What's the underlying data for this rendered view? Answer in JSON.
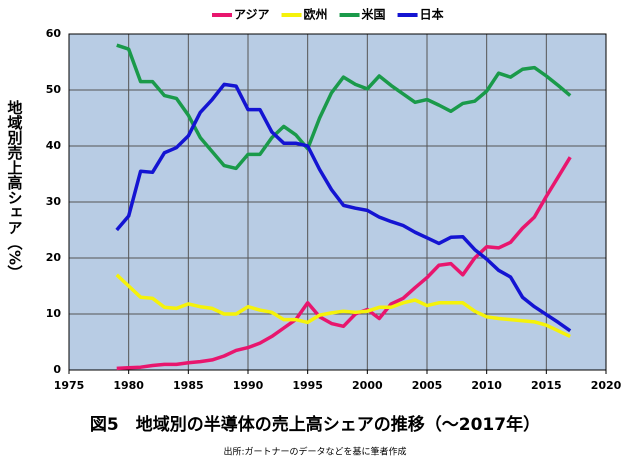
{
  "chart_data": {
    "type": "line",
    "title": "図5　地域別の半導体の売上高シェアの推移（～2017年）",
    "source": "出所:ガートナーのデータなどを基に筆者作成",
    "y_label": "地域別売上高シェア（%）",
    "x": [
      1979,
      1980,
      1981,
      1982,
      1983,
      1984,
      1985,
      1986,
      1987,
      1988,
      1989,
      1990,
      1991,
      1992,
      1993,
      1994,
      1995,
      1996,
      1997,
      1998,
      1999,
      2000,
      2001,
      2002,
      2003,
      2004,
      2005,
      2006,
      2007,
      2008,
      2009,
      2010,
      2011,
      2012,
      2013,
      2014,
      2015,
      2016,
      2017
    ],
    "series": [
      {
        "name": "アジア",
        "color": "#e8166e",
        "values": [
          0.3,
          0.4,
          0.5,
          0.8,
          1,
          1,
          1.3,
          1.5,
          1.8,
          2.5,
          3.5,
          4,
          4.8,
          6,
          7.5,
          9,
          12,
          9.5,
          8.3,
          7.8,
          10,
          10.8,
          9.2,
          11.8,
          12.8,
          14.7,
          16.5,
          18.7,
          19,
          17,
          20,
          22,
          21.8,
          22.8,
          25.3,
          27.3,
          31,
          34.5,
          38
        ]
      },
      {
        "name": "欧州",
        "color": "#f5f20a",
        "values": [
          17,
          15,
          13,
          12.8,
          11.2,
          11,
          11.8,
          11.3,
          11,
          10,
          10,
          11.3,
          10.7,
          10.3,
          9,
          9,
          8.5,
          9.8,
          10.2,
          10.5,
          10.3,
          10.5,
          11.2,
          11.2,
          12,
          12.5,
          11.5,
          12,
          12,
          12,
          10.5,
          9.5,
          9.2,
          9,
          8.8,
          8.6,
          8,
          7,
          6
        ]
      },
      {
        "name": "米国",
        "color": "#1a9a4a",
        "values": [
          58,
          57.3,
          51.5,
          51.5,
          49,
          48.5,
          45.5,
          41.5,
          39,
          36.5,
          36,
          38.5,
          38.5,
          41.5,
          43.5,
          42,
          39.5,
          45,
          49.5,
          52.3,
          51,
          50.2,
          52.5,
          50.8,
          49.3,
          47.8,
          48.3,
          47.3,
          46.2,
          47.6,
          48,
          49.8,
          53,
          52.3,
          53.7,
          54,
          52.5,
          50.8,
          49
        ]
      },
      {
        "name": "日本",
        "color": "#1414d2",
        "values": [
          25,
          27.5,
          35.5,
          35.3,
          38.8,
          39.7,
          41.8,
          46,
          48.3,
          51,
          50.7,
          46.5,
          46.5,
          42.5,
          40.5,
          40.5,
          40,
          35.8,
          32.2,
          29.4,
          28.9,
          28.5,
          27.3,
          26.5,
          25.8,
          24.6,
          23.6,
          22.6,
          23.7,
          23.8,
          21.5,
          19.8,
          17.8,
          16.6,
          13,
          11.3,
          9.9,
          8.5,
          7
        ]
      }
    ],
    "xlim": [
      1975,
      2020
    ],
    "xticks": [
      1975,
      1980,
      1985,
      1990,
      1995,
      2000,
      2005,
      2010,
      2015,
      2020
    ],
    "ylim": [
      0,
      60
    ],
    "yticks": [
      0,
      10,
      20,
      30,
      40,
      50,
      60
    ],
    "grid": true,
    "legend": "top"
  }
}
